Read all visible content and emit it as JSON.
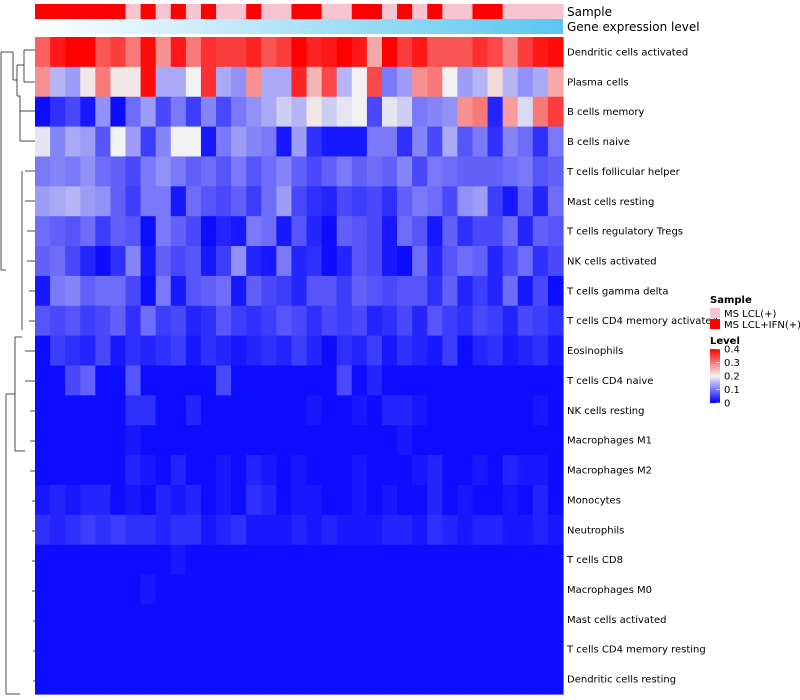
{
  "chart_data": {
    "type": "heatmap",
    "title": "",
    "annotation_tracks": [
      {
        "name": "Sample"
      },
      {
        "name": "Gene expression level"
      }
    ],
    "row_labels": [
      "Dendritic cells activated",
      "Plasma cells",
      "B cells memory",
      "B cells naive",
      "T cells follicular helper",
      "Mast cells resting",
      "T cells regulatory  Tregs",
      "NK cells activated",
      "T cells gamma delta",
      "T cells CD4 memory activated",
      "Eosinophils",
      "T cells CD4 naive",
      "NK cells resting",
      "Macrophages M1",
      "Macrophages M2",
      "Monocytes",
      "Neutrophils",
      "T cells CD8",
      "Macrophages M0",
      "Mast cells activated",
      "T cells CD4 memory resting",
      "Dendritic cells resting"
    ],
    "sample_groups": [
      1,
      1,
      1,
      1,
      1,
      1,
      0,
      1,
      0,
      1,
      0,
      1,
      0,
      0,
      1,
      0,
      0,
      1,
      1,
      0,
      0,
      1,
      1,
      0,
      1,
      0,
      1,
      0,
      0,
      1,
      1,
      0,
      0,
      0,
      0
    ],
    "values": [
      [
        0.32,
        0.38,
        0.4,
        0.4,
        0.33,
        0.35,
        0.3,
        0.39,
        0.28,
        0.38,
        0.3,
        0.36,
        0.35,
        0.35,
        0.37,
        0.33,
        0.35,
        0.4,
        0.37,
        0.38,
        0.4,
        0.38,
        0.26,
        0.4,
        0.35,
        0.38,
        0.33,
        0.33,
        0.33,
        0.36,
        0.34,
        0.29,
        0.35,
        0.38,
        0.39
      ],
      [
        0.28,
        0.15,
        0.13,
        0.21,
        0.3,
        0.21,
        0.21,
        0.39,
        0.14,
        0.14,
        0.2,
        0.36,
        0.14,
        0.12,
        0.28,
        0.14,
        0.14,
        0.37,
        0.25,
        0.34,
        0.15,
        0.2,
        0.34,
        0.1,
        0.13,
        0.28,
        0.3,
        0.2,
        0.13,
        0.15,
        0.22,
        0.15,
        0.12,
        0.14,
        0.26
      ],
      [
        0.01,
        0.04,
        0.06,
        0.02,
        0.12,
        0.01,
        0.09,
        0.13,
        0.06,
        0.1,
        0.05,
        0.11,
        0.06,
        0.1,
        0.12,
        0.14,
        0.17,
        0.15,
        0.21,
        0.17,
        0.19,
        0.2,
        0.06,
        0.19,
        0.17,
        0.1,
        0.11,
        0.12,
        0.28,
        0.3,
        0.03,
        0.27,
        0.18,
        0.3,
        0.35
      ],
      [
        0.19,
        0.11,
        0.14,
        0.13,
        0.07,
        0.2,
        0.13,
        0.05,
        0.11,
        0.2,
        0.2,
        0.02,
        0.1,
        0.13,
        0.11,
        0.1,
        0.02,
        0.13,
        0.04,
        0.02,
        0.02,
        0.02,
        0.1,
        0.1,
        0.04,
        0.11,
        0.06,
        0.14,
        0.07,
        0.1,
        0.04,
        0.11,
        0.09,
        0.04,
        0.1
      ],
      [
        0.1,
        0.11,
        0.1,
        0.12,
        0.09,
        0.08,
        0.06,
        0.1,
        0.12,
        0.1,
        0.08,
        0.09,
        0.07,
        0.1,
        0.07,
        0.09,
        0.11,
        0.08,
        0.06,
        0.08,
        0.1,
        0.08,
        0.09,
        0.08,
        0.11,
        0.06,
        0.1,
        0.09,
        0.08,
        0.08,
        0.08,
        0.09,
        0.1,
        0.07,
        0.08
      ],
      [
        0.13,
        0.14,
        0.15,
        0.13,
        0.12,
        0.08,
        0.05,
        0.1,
        0.1,
        0.02,
        0.09,
        0.07,
        0.06,
        0.08,
        0.05,
        0.09,
        0.13,
        0.06,
        0.04,
        0.03,
        0.06,
        0.05,
        0.06,
        0.04,
        0.08,
        0.1,
        0.09,
        0.06,
        0.12,
        0.13,
        0.05,
        0.02,
        0.08,
        0.03,
        0.09
      ],
      [
        0.09,
        0.08,
        0.07,
        0.09,
        0.05,
        0.08,
        0.07,
        0.01,
        0.1,
        0.08,
        0.06,
        0.01,
        0.03,
        0.02,
        0.1,
        0.09,
        0.02,
        0.07,
        0.03,
        0.01,
        0.08,
        0.07,
        0.06,
        0.02,
        0.09,
        0.07,
        0.02,
        0.08,
        0.04,
        0.06,
        0.06,
        0.09,
        0.03,
        0.08,
        0.07
      ],
      [
        0.08,
        0.09,
        0.06,
        0.03,
        0.01,
        0.04,
        0.11,
        0.02,
        0.08,
        0.06,
        0.07,
        0.02,
        0.05,
        0.12,
        0.03,
        0.02,
        0.1,
        0.03,
        0.04,
        0.01,
        0.03,
        0.07,
        0.06,
        0.02,
        0.01,
        0.09,
        0.03,
        0.07,
        0.09,
        0.08,
        0.03,
        0.06,
        0.09,
        0.04,
        0.06
      ],
      [
        0.02,
        0.1,
        0.11,
        0.08,
        0.09,
        0.09,
        0.06,
        0.01,
        0.1,
        0.02,
        0.07,
        0.08,
        0.09,
        0.02,
        0.08,
        0.06,
        0.05,
        0.03,
        0.07,
        0.07,
        0.05,
        0.08,
        0.07,
        0.06,
        0.07,
        0.07,
        0.04,
        0.08,
        0.03,
        0.05,
        0.03,
        0.09,
        0.02,
        0.06,
        0.01
      ],
      [
        0.07,
        0.06,
        0.07,
        0.05,
        0.06,
        0.08,
        0.04,
        0.09,
        0.05,
        0.06,
        0.03,
        0.04,
        0.07,
        0.05,
        0.04,
        0.05,
        0.07,
        0.06,
        0.04,
        0.06,
        0.05,
        0.06,
        0.03,
        0.04,
        0.06,
        0.03,
        0.07,
        0.05,
        0.04,
        0.06,
        0.05,
        0.03,
        0.06,
        0.05,
        0.04
      ],
      [
        0.01,
        0.05,
        0.04,
        0.03,
        0.06,
        0.02,
        0.04,
        0.03,
        0.04,
        0.05,
        0.02,
        0.04,
        0.03,
        0.02,
        0.03,
        0.04,
        0.03,
        0.05,
        0.03,
        0.01,
        0.04,
        0.03,
        0.05,
        0.02,
        0.04,
        0.03,
        0.02,
        0.05,
        0.01,
        0.03,
        0.04,
        0.02,
        0.03,
        0.04,
        0.02
      ],
      [
        0.01,
        0.01,
        0.06,
        0.08,
        0.01,
        0.01,
        0.07,
        0.01,
        0.01,
        0.01,
        0.01,
        0.01,
        0.06,
        0.01,
        0.01,
        0.01,
        0.01,
        0.01,
        0.01,
        0.01,
        0.06,
        0.01,
        0.03,
        0.01,
        0.01,
        0.01,
        0.01,
        0.01,
        0.01,
        0.01,
        0.01,
        0.01,
        0.01,
        0.01,
        0.01
      ],
      [
        0.01,
        0.01,
        0.01,
        0.01,
        0.01,
        0.01,
        0.04,
        0.04,
        0.01,
        0.01,
        0.03,
        0.01,
        0.01,
        0.01,
        0.01,
        0.01,
        0.01,
        0.01,
        0.02,
        0.01,
        0.01,
        0.02,
        0.01,
        0.03,
        0.03,
        0.02,
        0.01,
        0.01,
        0.01,
        0.01,
        0.01,
        0.01,
        0.01,
        0.02,
        0.01
      ],
      [
        0.01,
        0.01,
        0.01,
        0.01,
        0.01,
        0.01,
        0.02,
        0.01,
        0.01,
        0.01,
        0.01,
        0.01,
        0.01,
        0.01,
        0.01,
        0.01,
        0.01,
        0.01,
        0.01,
        0.01,
        0.01,
        0.01,
        0.01,
        0.01,
        0.02,
        0.01,
        0.01,
        0.01,
        0.01,
        0.01,
        0.01,
        0.01,
        0.01,
        0.01,
        0.01
      ],
      [
        0.01,
        0.01,
        0.01,
        0.01,
        0.01,
        0.01,
        0.03,
        0.02,
        0.01,
        0.03,
        0.01,
        0.01,
        0.02,
        0.01,
        0.03,
        0.02,
        0.01,
        0.02,
        0.01,
        0.01,
        0.01,
        0.02,
        0.01,
        0.01,
        0.01,
        0.02,
        0.03,
        0.01,
        0.01,
        0.02,
        0.01,
        0.03,
        0.02,
        0.02,
        0.01
      ],
      [
        0.02,
        0.03,
        0.02,
        0.03,
        0.03,
        0.01,
        0.02,
        0.01,
        0.03,
        0.02,
        0.03,
        0.01,
        0.02,
        0.01,
        0.04,
        0.03,
        0.01,
        0.02,
        0.02,
        0.01,
        0.01,
        0.02,
        0.01,
        0.02,
        0.01,
        0.01,
        0.03,
        0.01,
        0.02,
        0.01,
        0.01,
        0.02,
        0.01,
        0.03,
        0.01
      ],
      [
        0.04,
        0.03,
        0.04,
        0.05,
        0.04,
        0.05,
        0.04,
        0.04,
        0.03,
        0.04,
        0.04,
        0.02,
        0.03,
        0.04,
        0.02,
        0.02,
        0.02,
        0.03,
        0.02,
        0.03,
        0.02,
        0.02,
        0.02,
        0.03,
        0.03,
        0.02,
        0.04,
        0.03,
        0.02,
        0.03,
        0.03,
        0.02,
        0.02,
        0.03,
        0.02
      ],
      [
        0.01,
        0.01,
        0.01,
        0.01,
        0.01,
        0.01,
        0.01,
        0.01,
        0.01,
        0.02,
        0.01,
        0.01,
        0.01,
        0.01,
        0.01,
        0.01,
        0.01,
        0.01,
        0.01,
        0.01,
        0.01,
        0.01,
        0.01,
        0.01,
        0.01,
        0.01,
        0.01,
        0.01,
        0.01,
        0.01,
        0.01,
        0.01,
        0.01,
        0.01,
        0.01
      ],
      [
        0.01,
        0.01,
        0.01,
        0.01,
        0.01,
        0.01,
        0.01,
        0.02,
        0.01,
        0.01,
        0.01,
        0.01,
        0.01,
        0.01,
        0.01,
        0.01,
        0.01,
        0.01,
        0.01,
        0.01,
        0.01,
        0.01,
        0.01,
        0.01,
        0.01,
        0.01,
        0.01,
        0.01,
        0.01,
        0.01,
        0.01,
        0.01,
        0.01,
        0.01,
        0.01
      ],
      [
        0.01,
        0.01,
        0.01,
        0.01,
        0.01,
        0.01,
        0.01,
        0.01,
        0.01,
        0.01,
        0.01,
        0.01,
        0.01,
        0.01,
        0.01,
        0.01,
        0.01,
        0.01,
        0.01,
        0.01,
        0.01,
        0.01,
        0.01,
        0.01,
        0.01,
        0.01,
        0.01,
        0.01,
        0.01,
        0.01,
        0.01,
        0.01,
        0.01,
        0.01,
        0.01
      ],
      [
        0.01,
        0.01,
        0.01,
        0.01,
        0.01,
        0.01,
        0.01,
        0.01,
        0.01,
        0.01,
        0.01,
        0.01,
        0.01,
        0.01,
        0.01,
        0.01,
        0.01,
        0.01,
        0.01,
        0.01,
        0.01,
        0.01,
        0.01,
        0.01,
        0.01,
        0.01,
        0.01,
        0.01,
        0.01,
        0.01,
        0.01,
        0.01,
        0.01,
        0.01,
        0.01
      ],
      [
        0.01,
        0.01,
        0.01,
        0.01,
        0.01,
        0.01,
        0.01,
        0.01,
        0.01,
        0.01,
        0.01,
        0.01,
        0.01,
        0.01,
        0.01,
        0.01,
        0.01,
        0.01,
        0.01,
        0.01,
        0.01,
        0.01,
        0.01,
        0.01,
        0.01,
        0.01,
        0.01,
        0.01,
        0.01,
        0.01,
        0.01,
        0.01,
        0.01,
        0.01,
        0.01
      ]
    ],
    "color_scale": {
      "name": "Level",
      "stops": [
        {
          "value": 0,
          "color": "#0000ff"
        },
        {
          "value": 0.2,
          "color": "#f2f2f2"
        },
        {
          "value": 0.4,
          "color": "#ff0000"
        }
      ],
      "ticks": [
        "0.4",
        "0.3",
        "0.2",
        "0.1",
        "0"
      ]
    },
    "legends": {
      "sample": {
        "title": "Sample",
        "items": [
          {
            "label": "MS LCL(+)",
            "color": "#f9c4d2"
          },
          {
            "label": "MS LCL+IFN(+)",
            "color": "#ff0000"
          }
        ]
      },
      "level": {
        "title": "Level"
      }
    },
    "gene_expression_gradient": [
      "#ffffff",
      "#5bc6f0"
    ]
  }
}
